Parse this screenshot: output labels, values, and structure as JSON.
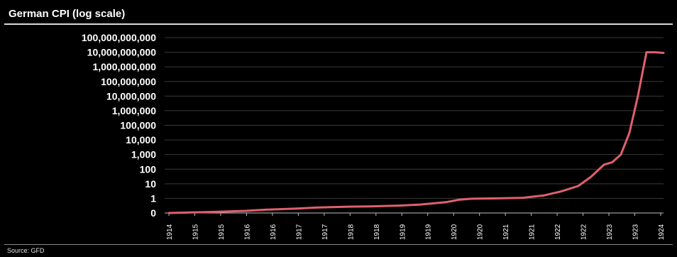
{
  "header": {
    "title": "German CPI (log scale)"
  },
  "footer": {
    "source": "Source: GFD"
  },
  "colors": {
    "background": "#000000",
    "line": "#e0606e",
    "grid": "#3a3a3a",
    "text": "#ffffff"
  },
  "chart_data": {
    "type": "line",
    "title": "German CPI (log scale)",
    "xlabel": "",
    "ylabel": "",
    "y_scale": "log",
    "grid": true,
    "legend": "none",
    "y_ticks": [
      {
        "value": 0,
        "label": "0"
      },
      {
        "value": 1,
        "label": "1"
      },
      {
        "value": 10,
        "label": "10"
      },
      {
        "value": 100,
        "label": "100"
      },
      {
        "value": 1000,
        "label": "1,000"
      },
      {
        "value": 10000,
        "label": "10,000"
      },
      {
        "value": 100000,
        "label": "100,000"
      },
      {
        "value": 1000000,
        "label": "1,000,000"
      },
      {
        "value": 10000000,
        "label": "10,000,000"
      },
      {
        "value": 100000000,
        "label": "100,000,000"
      },
      {
        "value": 1000000000,
        "label": "1,000,000,000"
      },
      {
        "value": 10000000000,
        "label": "10,000,000,000"
      },
      {
        "value": 100000000000,
        "label": "100,000,000,000"
      }
    ],
    "x_ticks": [
      "1914",
      "1915",
      "1915",
      "1916",
      "1916",
      "1917",
      "1917",
      "1918",
      "1918",
      "1919",
      "1919",
      "1920",
      "1920",
      "1921",
      "1921",
      "1922",
      "1922",
      "1923",
      "1923",
      "1924"
    ],
    "x_range": [
      "1914-06",
      "1924-03"
    ],
    "series": [
      {
        "points": [
          [
            "1914-07",
            0.1
          ],
          [
            "1915-06",
            0.12
          ],
          [
            "1916-01",
            0.14
          ],
          [
            "1916-06",
            0.17
          ],
          [
            "1917-01",
            0.2
          ],
          [
            "1917-06",
            0.24
          ],
          [
            "1918-01",
            0.27
          ],
          [
            "1918-06",
            0.28
          ],
          [
            "1919-01",
            0.32
          ],
          [
            "1919-06",
            0.38
          ],
          [
            "1919-12",
            0.55
          ],
          [
            "1920-03",
            0.8
          ],
          [
            "1920-06",
            0.95
          ],
          [
            "1920-12",
            1
          ],
          [
            "1921-06",
            1.1
          ],
          [
            "1921-11",
            1.6
          ],
          [
            "1922-03",
            3
          ],
          [
            "1922-07",
            7
          ],
          [
            "1922-10",
            30
          ],
          [
            "1923-01",
            200
          ],
          [
            "1923-03",
            300
          ],
          [
            "1923-05",
            1000
          ],
          [
            "1923-07",
            30000
          ],
          [
            "1923-09",
            10000000
          ],
          [
            "1923-11",
            10000000000
          ],
          [
            "1924-01",
            10000000000
          ],
          [
            "1924-03",
            9000000000
          ]
        ]
      }
    ]
  }
}
